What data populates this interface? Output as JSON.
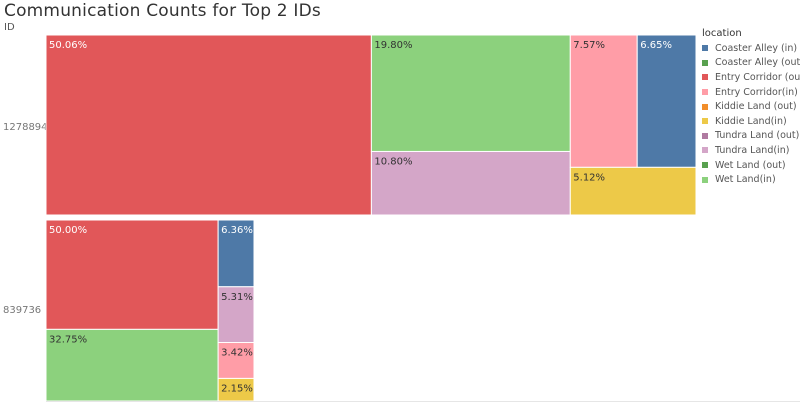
{
  "chart_data": {
    "type": "treemap",
    "title": "Communication Counts for Top 2  IDs",
    "row_axis_label": "ID",
    "legend_title": "location",
    "legend_position": "right",
    "legend": [
      {
        "name": "Coaster Alley (in)",
        "color": "#4e79a7"
      },
      {
        "name": "Coaster Alley (out)",
        "color": "#59a14f"
      },
      {
        "name": "Entry Corridor (out)",
        "color": "#e15759"
      },
      {
        "name": "Entry Corridor(in)",
        "color": "#ff9da7"
      },
      {
        "name": "Kiddie Land (out)",
        "color": "#f28e2b"
      },
      {
        "name": "Kiddie Land(in)",
        "color": "#edc948"
      },
      {
        "name": "Tundra Land (out)",
        "color": "#b07aa1"
      },
      {
        "name": "Tundra Land(in)",
        "color": "#d4a6c8"
      },
      {
        "name": "Wet Land (out)",
        "color": "#59a14f"
      },
      {
        "name": "Wet Land(in)",
        "color": "#8cd17d"
      }
    ],
    "groups": [
      {
        "id": "1278894",
        "cells": [
          {
            "location": "Entry Corridor (out)",
            "label": "50.06%",
            "value": 50.06
          },
          {
            "location": "Wet Land(in)",
            "label": "19.80%",
            "value": 19.8
          },
          {
            "location": "Tundra Land(in)",
            "label": "10.80%",
            "value": 10.8
          },
          {
            "location": "Entry Corridor(in)",
            "label": "7.57%",
            "value": 7.57
          },
          {
            "location": "Coaster Alley (in)",
            "label": "6.65%",
            "value": 6.65
          },
          {
            "location": "Kiddie Land(in)",
            "label": "5.12%",
            "value": 5.12
          }
        ]
      },
      {
        "id": "839736",
        "cells": [
          {
            "location": "Entry Corridor (out)",
            "label": "50.00%",
            "value": 50.0
          },
          {
            "location": "Wet Land(in)",
            "label": "32.75%",
            "value": 32.75
          },
          {
            "location": "Coaster Alley (in)",
            "label": "6.36%",
            "value": 6.36
          },
          {
            "location": "Tundra Land(in)",
            "label": "5.31%",
            "value": 5.31
          },
          {
            "location": "Entry Corridor(in)",
            "label": "3.42%",
            "value": 3.42
          },
          {
            "location": "Kiddie Land(in)",
            "label": "2.15%",
            "value": 2.15
          }
        ]
      }
    ]
  }
}
